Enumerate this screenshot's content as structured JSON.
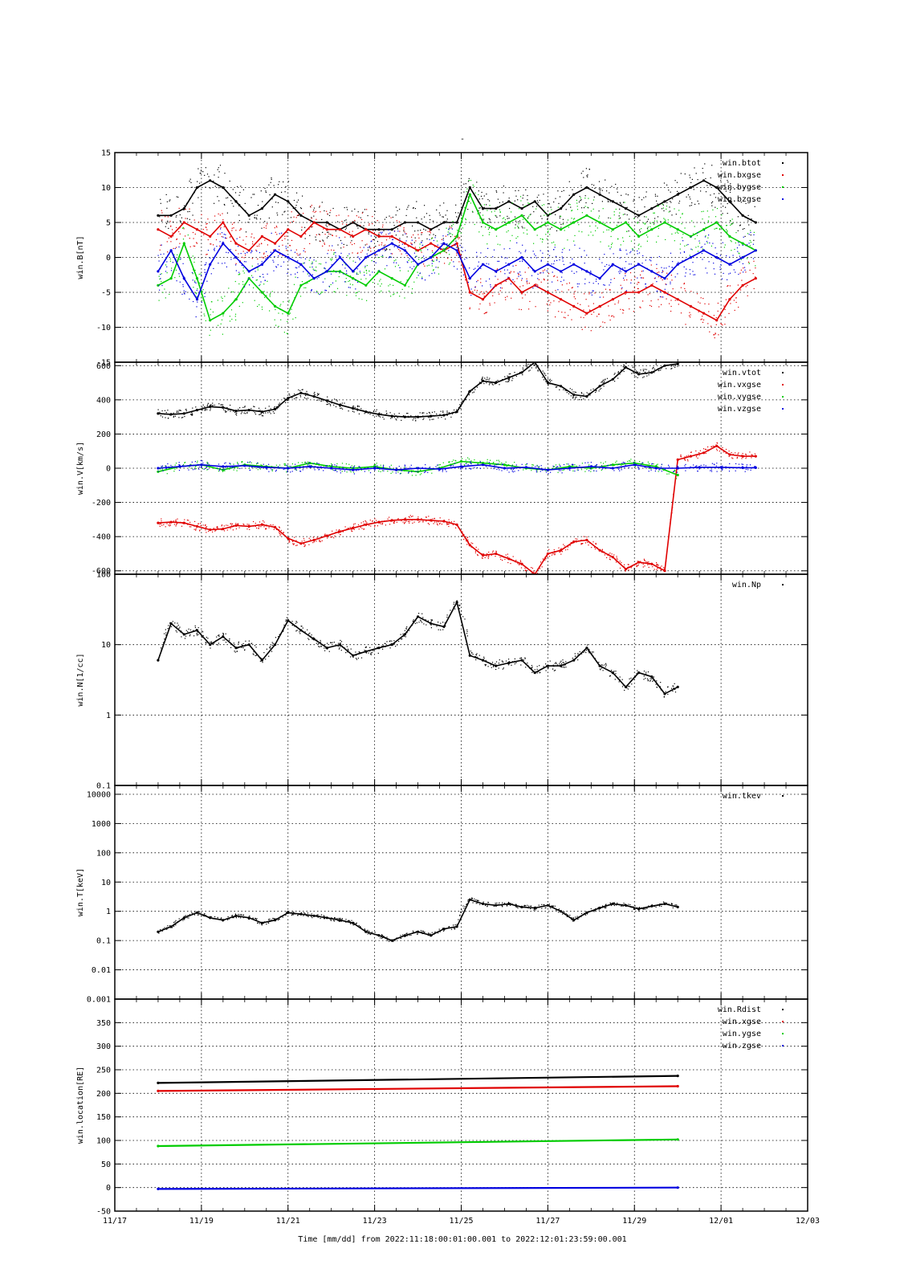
{
  "title": "-",
  "colors": {
    "black": "#000000",
    "red": "#e00000",
    "green": "#00cc00",
    "blue": "#0000e0"
  },
  "chart_data": [
    {
      "type": "scatter",
      "panel": "B",
      "ylabel": "win.B[nT]",
      "ylim": [
        -15,
        15
      ],
      "yscale": "linear",
      "yticks": [
        15,
        10,
        5,
        0,
        -5,
        -10,
        -15
      ],
      "grid": true,
      "legend_position": "top-right",
      "series": [
        {
          "name": "win.btot",
          "color": "#000000",
          "x": [
            18.0,
            18.3,
            18.6,
            18.9,
            19.2,
            19.5,
            19.8,
            20.1,
            20.4,
            20.7,
            21.0,
            21.3,
            21.6,
            21.9,
            22.2,
            22.5,
            22.8,
            23.1,
            23.4,
            23.7,
            24.0,
            24.3,
            24.6,
            24.9,
            25.2,
            25.5,
            25.8,
            26.1,
            26.4,
            26.7,
            27.0,
            27.3,
            27.6,
            27.9,
            28.2,
            28.5,
            28.8,
            29.1,
            29.4,
            29.7,
            30.0,
            30.3,
            30.6,
            30.9,
            31.2,
            31.5,
            31.8
          ],
          "y": [
            6,
            6,
            7,
            10,
            11,
            10,
            8,
            6,
            7,
            9,
            8,
            6,
            5,
            5,
            4,
            5,
            4,
            4,
            4,
            5,
            5,
            4,
            5,
            5,
            10,
            7,
            7,
            8,
            7,
            8,
            6,
            7,
            9,
            10,
            9,
            8,
            7,
            6,
            7,
            8,
            9,
            10,
            11,
            10,
            8,
            6,
            5
          ]
        },
        {
          "name": "win.bxgse",
          "color": "#e00000",
          "x": [
            18.0,
            18.3,
            18.6,
            18.9,
            19.2,
            19.5,
            19.8,
            20.1,
            20.4,
            20.7,
            21.0,
            21.3,
            21.6,
            21.9,
            22.2,
            22.5,
            22.8,
            23.1,
            23.4,
            23.7,
            24.0,
            24.3,
            24.6,
            24.9,
            25.2,
            25.5,
            25.8,
            26.1,
            26.4,
            26.7,
            27.0,
            27.3,
            27.6,
            27.9,
            28.2,
            28.5,
            28.8,
            29.1,
            29.4,
            29.7,
            30.0,
            30.3,
            30.6,
            30.9,
            31.2,
            31.5,
            31.8
          ],
          "y": [
            4,
            3,
            5,
            4,
            3,
            5,
            2,
            1,
            3,
            2,
            4,
            3,
            5,
            4,
            4,
            3,
            4,
            3,
            3,
            2,
            1,
            2,
            1,
            2,
            -5,
            -6,
            -4,
            -3,
            -5,
            -4,
            -5,
            -6,
            -7,
            -8,
            -7,
            -6,
            -5,
            -5,
            -4,
            -5,
            -6,
            -7,
            -8,
            -9,
            -6,
            -4,
            -3
          ]
        },
        {
          "name": "win.bygse",
          "color": "#00cc00",
          "x": [
            18.0,
            18.3,
            18.6,
            18.9,
            19.2,
            19.5,
            19.8,
            20.1,
            20.4,
            20.7,
            21.0,
            21.3,
            21.6,
            21.9,
            22.2,
            22.5,
            22.8,
            23.1,
            23.4,
            23.7,
            24.0,
            24.3,
            24.6,
            24.9,
            25.2,
            25.5,
            25.8,
            26.1,
            26.4,
            26.7,
            27.0,
            27.3,
            27.6,
            27.9,
            28.2,
            28.5,
            28.8,
            29.1,
            29.4,
            29.7,
            30.0,
            30.3,
            30.6,
            30.9,
            31.2,
            31.5,
            31.8
          ],
          "y": [
            -4,
            -3,
            2,
            -3,
            -9,
            -8,
            -6,
            -3,
            -5,
            -7,
            -8,
            -4,
            -3,
            -2,
            -2,
            -3,
            -4,
            -2,
            -3,
            -4,
            -1,
            0,
            1,
            3,
            9,
            5,
            4,
            5,
            6,
            4,
            5,
            4,
            5,
            6,
            5,
            4,
            5,
            3,
            4,
            5,
            4,
            3,
            4,
            5,
            3,
            2,
            1
          ]
        },
        {
          "name": "win.bzgse",
          "color": "#0000e0",
          "x": [
            18.0,
            18.3,
            18.6,
            18.9,
            19.2,
            19.5,
            19.8,
            20.1,
            20.4,
            20.7,
            21.0,
            21.3,
            21.6,
            21.9,
            22.2,
            22.5,
            22.8,
            23.1,
            23.4,
            23.7,
            24.0,
            24.3,
            24.6,
            24.9,
            25.2,
            25.5,
            25.8,
            26.1,
            26.4,
            26.7,
            27.0,
            27.3,
            27.6,
            27.9,
            28.2,
            28.5,
            28.8,
            29.1,
            29.4,
            29.7,
            30.0,
            30.3,
            30.6,
            30.9,
            31.2,
            31.5,
            31.8
          ],
          "y": [
            -2,
            1,
            -3,
            -6,
            -1,
            2,
            0,
            -2,
            -1,
            1,
            0,
            -1,
            -3,
            -2,
            0,
            -2,
            0,
            1,
            2,
            1,
            -1,
            0,
            2,
            1,
            -3,
            -1,
            -2,
            -1,
            0,
            -2,
            -1,
            -2,
            -1,
            -2,
            -3,
            -1,
            -2,
            -1,
            -2,
            -3,
            -1,
            0,
            1,
            0,
            -1,
            0,
            1
          ]
        }
      ]
    },
    {
      "type": "scatter",
      "panel": "V",
      "ylabel": "win.V[km/s]",
      "ylim": [
        -620,
        620
      ],
      "yscale": "linear",
      "yticks": [
        600,
        400,
        200,
        0,
        -200,
        -400,
        -600
      ],
      "grid": true,
      "legend_position": "top-right",
      "series": [
        {
          "name": "win.vtot",
          "color": "#000000",
          "x": [
            18.0,
            18.3,
            18.6,
            18.9,
            19.2,
            19.5,
            19.8,
            20.1,
            20.4,
            20.7,
            21.0,
            21.3,
            21.6,
            21.9,
            22.2,
            22.5,
            22.8,
            23.1,
            23.4,
            23.7,
            24.0,
            24.3,
            24.6,
            24.9,
            25.2,
            25.5,
            25.8,
            26.1,
            26.4,
            26.7,
            27.0,
            27.3,
            27.6,
            27.9,
            28.2,
            28.5,
            28.8,
            29.1,
            29.4,
            29.7,
            30.0
          ],
          "y": [
            320,
            315,
            320,
            340,
            360,
            355,
            335,
            340,
            330,
            345,
            410,
            440,
            420,
            395,
            370,
            350,
            330,
            315,
            305,
            300,
            300,
            305,
            310,
            330,
            450,
            510,
            500,
            530,
            560,
            620,
            500,
            480,
            430,
            420,
            480,
            520,
            590,
            550,
            560,
            600,
            610
          ]
        },
        {
          "name": "win.vxgse",
          "color": "#e00000",
          "x": [
            18.0,
            18.3,
            18.6,
            18.9,
            19.2,
            19.5,
            19.8,
            20.1,
            20.4,
            20.7,
            21.0,
            21.3,
            21.6,
            21.9,
            22.2,
            22.5,
            22.8,
            23.1,
            23.4,
            23.7,
            24.0,
            24.3,
            24.6,
            24.9,
            25.2,
            25.5,
            25.8,
            26.1,
            26.4,
            26.7,
            27.0,
            27.3,
            27.6,
            27.9,
            28.2,
            28.5,
            28.8,
            29.1,
            29.4,
            29.7,
            30.0,
            30.3,
            30.6,
            30.9,
            31.2,
            31.5,
            31.8
          ],
          "y": [
            -320,
            -315,
            -320,
            -340,
            -360,
            -355,
            -335,
            -340,
            -330,
            -345,
            -410,
            -440,
            -420,
            -395,
            -370,
            -350,
            -330,
            -315,
            -305,
            -300,
            -300,
            -305,
            -310,
            -330,
            -450,
            -510,
            -500,
            -530,
            -560,
            -620,
            -500,
            -480,
            -430,
            -420,
            -480,
            -520,
            -590,
            -550,
            -560,
            -600,
            50,
            70,
            90,
            130,
            80,
            70,
            70
          ]
        },
        {
          "name": "win.vygse",
          "color": "#00cc00",
          "x": [
            18.0,
            18.5,
            19.0,
            19.5,
            20.0,
            20.5,
            21.0,
            21.5,
            22.0,
            22.5,
            23.0,
            23.5,
            24.0,
            24.5,
            25.0,
            25.5,
            26.0,
            26.5,
            27.0,
            27.5,
            28.0,
            28.5,
            29.0,
            29.5,
            30.0
          ],
          "y": [
            -20,
            10,
            20,
            -10,
            20,
            10,
            0,
            30,
            10,
            0,
            10,
            -10,
            -20,
            0,
            40,
            30,
            20,
            0,
            -10,
            10,
            0,
            20,
            30,
            10,
            -40
          ]
        },
        {
          "name": "win.vzgse",
          "color": "#0000e0",
          "x": [
            18.0,
            18.5,
            19.0,
            19.5,
            20.0,
            20.5,
            21.0,
            21.5,
            22.0,
            22.5,
            23.0,
            23.5,
            24.0,
            24.5,
            25.0,
            25.5,
            26.0,
            26.5,
            27.0,
            27.5,
            28.0,
            28.5,
            29.0,
            29.5,
            30.0,
            30.5,
            31.0,
            31.5,
            31.8
          ],
          "y": [
            0,
            10,
            20,
            10,
            15,
            5,
            0,
            10,
            0,
            -10,
            0,
            -10,
            0,
            -5,
            10,
            20,
            0,
            5,
            -10,
            0,
            10,
            0,
            20,
            0,
            0,
            5,
            5,
            3,
            3
          ]
        }
      ]
    },
    {
      "type": "scatter",
      "panel": "N",
      "ylabel": "win.N[1/cc]",
      "ylim": [
        0.1,
        100
      ],
      "yscale": "log",
      "yticks": [
        100,
        10,
        1,
        0.1
      ],
      "yticklabels": [
        "100",
        "10",
        "1",
        "0.1"
      ],
      "grid": true,
      "legend_position": "top-right",
      "series": [
        {
          "name": "win.Np",
          "color": "#000000",
          "x": [
            18.0,
            18.3,
            18.6,
            18.9,
            19.2,
            19.5,
            19.8,
            20.1,
            20.4,
            20.7,
            21.0,
            21.3,
            21.6,
            21.9,
            22.2,
            22.5,
            22.8,
            23.1,
            23.4,
            23.7,
            24.0,
            24.3,
            24.6,
            24.9,
            25.2,
            25.5,
            25.8,
            26.1,
            26.4,
            26.7,
            27.0,
            27.3,
            27.6,
            27.9,
            28.2,
            28.5,
            28.8,
            29.1,
            29.4,
            29.7,
            30.0
          ],
          "y": [
            6,
            20,
            14,
            16,
            10,
            13,
            9,
            10,
            6,
            10,
            22,
            16,
            12,
            9,
            10,
            7,
            8,
            9,
            10,
            14,
            25,
            20,
            18,
            40,
            7,
            6,
            5,
            5.5,
            6,
            4,
            5,
            5,
            6,
            9,
            5,
            4,
            2.5,
            4,
            3.5,
            2,
            2.5
          ]
        }
      ]
    },
    {
      "type": "scatter",
      "panel": "T",
      "ylabel": "win.T[keV]",
      "ylim": [
        0.001,
        20000
      ],
      "yscale": "log",
      "yticks": [
        10000,
        1000,
        100,
        10,
        1,
        0.1,
        0.01,
        0.001
      ],
      "yticklabels": [
        "10000",
        "1000",
        "100",
        "10",
        "1",
        "0.1",
        "0.01",
        "0.001"
      ],
      "grid": true,
      "legend_position": "top-right",
      "series": [
        {
          "name": "win.tkev",
          "color": "#000000",
          "x": [
            18.0,
            18.3,
            18.6,
            18.9,
            19.2,
            19.5,
            19.8,
            20.1,
            20.4,
            20.7,
            21.0,
            21.3,
            21.6,
            21.9,
            22.2,
            22.5,
            22.8,
            23.1,
            23.4,
            23.7,
            24.0,
            24.3,
            24.6,
            24.9,
            25.2,
            25.5,
            25.8,
            26.1,
            26.4,
            26.7,
            27.0,
            27.3,
            27.6,
            27.9,
            28.2,
            28.5,
            28.8,
            29.1,
            29.4,
            29.7,
            30.0
          ],
          "y": [
            0.2,
            0.3,
            0.6,
            0.9,
            0.6,
            0.5,
            0.7,
            0.6,
            0.4,
            0.5,
            0.9,
            0.8,
            0.7,
            0.6,
            0.5,
            0.4,
            0.2,
            0.15,
            0.1,
            0.15,
            0.2,
            0.15,
            0.25,
            0.3,
            2.5,
            1.8,
            1.6,
            1.8,
            1.4,
            1.3,
            1.6,
            1.0,
            0.5,
            0.9,
            1.3,
            1.8,
            1.6,
            1.2,
            1.5,
            1.8,
            1.4
          ]
        }
      ]
    },
    {
      "type": "scatter",
      "panel": "location",
      "ylabel": "win.location[RE]",
      "ylim": [
        -50,
        400
      ],
      "yscale": "linear",
      "yticks": [
        350,
        300,
        250,
        200,
        150,
        100,
        50,
        0,
        -50
      ],
      "yticklabels": [
        "350",
        "300",
        "250",
        "200",
        "150",
        "100",
        "50",
        "0",
        "-50"
      ],
      "grid": true,
      "legend_position": "top-right",
      "xlabel": "Time [mm/dd]  from 2022:11:18:00:01:00.001  to  2022:12:01:23:59:00.001",
      "xlim": [
        17,
        33
      ],
      "xticks": [
        17,
        19,
        21,
        23,
        25,
        27,
        29,
        31,
        33
      ],
      "xticklabels": [
        "11/17",
        "11/19",
        "11/21",
        "11/23",
        "11/25",
        "11/27",
        "11/29",
        "12/01",
        "12/03"
      ],
      "series": [
        {
          "name": "win.Rdist",
          "color": "#000000",
          "x": [
            18.0,
            30.0
          ],
          "y": [
            222,
            237
          ]
        },
        {
          "name": "win.xgse",
          "color": "#e00000",
          "x": [
            18.0,
            30.0
          ],
          "y": [
            205,
            215
          ]
        },
        {
          "name": "win.ygse",
          "color": "#00cc00",
          "x": [
            18.0,
            30.0
          ],
          "y": [
            88,
            102
          ]
        },
        {
          "name": "win.zgse",
          "color": "#0000e0",
          "x": [
            18.0,
            30.0
          ],
          "y": [
            -3,
            0
          ]
        }
      ]
    }
  ]
}
